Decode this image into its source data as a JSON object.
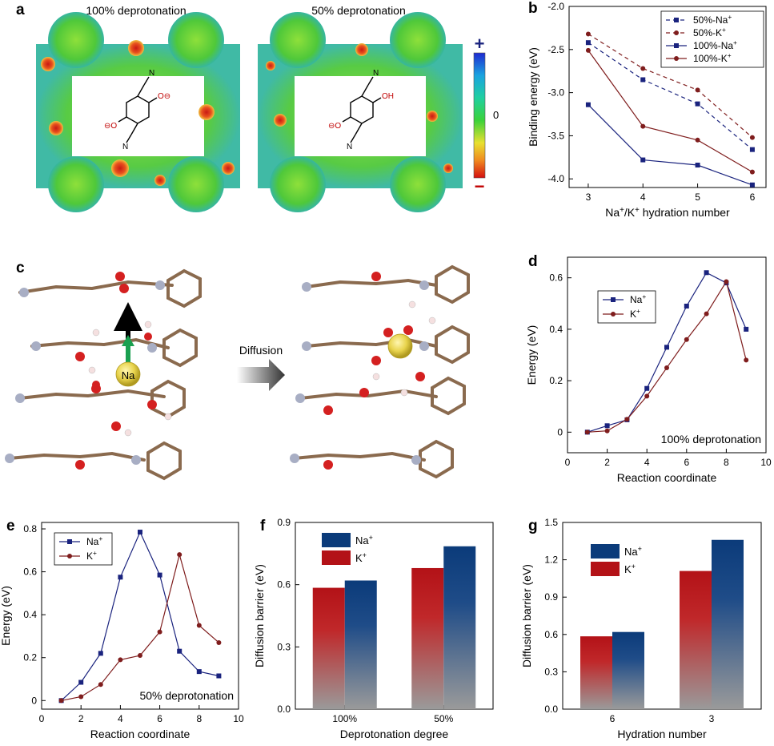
{
  "panels": {
    "a": {
      "letter": "a",
      "left_title": "100% deprotonation",
      "right_title": "50% deprotonation",
      "colorbar": {
        "plus": "+",
        "zero": "0",
        "minus": "−"
      },
      "molecule_oh": "OH"
    },
    "c": {
      "letter": "c",
      "ion_label": "Na",
      "arrow_label": "Diffusion"
    }
  },
  "colors": {
    "navy": "#1a237e",
    "maroon": "#7f1d1d",
    "bar_blue": "#0b3b7a",
    "bar_red": "#b31217",
    "bar_gray": "#9a9a9a",
    "esp_green": "#5ed33a",
    "esp_red": "#d82a1f",
    "esp_yellow": "#f3d34a",
    "atom_c": "#8a6a4e",
    "atom_o": "#d42020",
    "atom_n": "#a8aec4",
    "atom_na": "#e8d34c"
  },
  "chart_data": [
    {
      "id": "b",
      "letter": "b",
      "type": "line",
      "xlabel": "Na+/K+ hydration number",
      "ylabel": "Binding energy (eV)",
      "xlim": [
        3,
        6
      ],
      "ylim": [
        -4.1,
        -2.0
      ],
      "xticks": [
        "3",
        "4",
        "5",
        "6"
      ],
      "yticks": [
        "-2.0",
        "-2.5",
        "-3.0",
        "-3.5",
        "-4.0"
      ],
      "legend_position": "top-right",
      "x": [
        3,
        4,
        5,
        6
      ],
      "series": [
        {
          "name": "50%-Na+",
          "values": [
            -2.42,
            -2.85,
            -3.13,
            -3.66
          ],
          "style": "dashed",
          "marker": "square"
        },
        {
          "name": "50%-K+",
          "values": [
            -2.32,
            -2.72,
            -2.97,
            -3.52
          ],
          "style": "dashed",
          "marker": "circle"
        },
        {
          "name": "100%-Na+",
          "values": [
            -3.14,
            -3.78,
            -3.84,
            -4.07
          ],
          "style": "solid",
          "marker": "square"
        },
        {
          "name": "100%-K+",
          "values": [
            -2.51,
            -3.39,
            -3.55,
            -3.92
          ],
          "style": "solid",
          "marker": "circle"
        }
      ]
    },
    {
      "id": "d",
      "letter": "d",
      "type": "line",
      "xlabel": "Reaction coordinate",
      "ylabel": "Energy (eV)",
      "annotation": "100% deprotonation",
      "xlim": [
        0,
        10
      ],
      "ylim": [
        -0.08,
        0.68
      ],
      "xticks": [
        "0",
        "2",
        "4",
        "6",
        "8",
        "10"
      ],
      "yticks": [
        "0",
        "0.2",
        "0.4",
        "0.6"
      ],
      "legend_position": "top-left",
      "x": [
        1,
        2,
        3,
        4,
        5,
        6,
        7,
        8,
        9
      ],
      "series": [
        {
          "name": "Na+",
          "values": [
            0,
            0.025,
            0.048,
            0.17,
            0.33,
            0.49,
            0.62,
            0.58,
            0.4
          ],
          "marker": "square"
        },
        {
          "name": "K+",
          "values": [
            0,
            0.005,
            0.05,
            0.14,
            0.25,
            0.36,
            0.46,
            0.585,
            0.28
          ],
          "marker": "circle"
        }
      ]
    },
    {
      "id": "e",
      "letter": "e",
      "type": "line",
      "xlabel": "Reaction coordinate",
      "ylabel": "Energy (eV)",
      "annotation": "50% deprotonation",
      "xlim": [
        0,
        10
      ],
      "ylim": [
        -0.04,
        0.83
      ],
      "xticks": [
        "0",
        "2",
        "4",
        "6",
        "8",
        "10"
      ],
      "yticks": [
        "0",
        "0.2",
        "0.4",
        "0.6",
        "0.8"
      ],
      "legend_position": "top-left",
      "x": [
        1,
        2,
        3,
        4,
        5,
        6,
        7,
        8,
        9
      ],
      "series": [
        {
          "name": "Na+",
          "values": [
            0,
            0.085,
            0.22,
            0.575,
            0.785,
            0.585,
            0.23,
            0.135,
            0.115
          ],
          "marker": "square"
        },
        {
          "name": "K+",
          "values": [
            0,
            0.018,
            0.075,
            0.19,
            0.21,
            0.32,
            0.68,
            0.35,
            0.27
          ],
          "marker": "circle"
        }
      ]
    },
    {
      "id": "f",
      "letter": "f",
      "type": "bar",
      "xlabel": "Deprotonation degree",
      "ylabel": "Diffusion barrier (eV)",
      "categories": [
        "100%",
        "50%"
      ],
      "ylim": [
        0,
        0.9
      ],
      "yticks": [
        "0.0",
        "0.3",
        "0.6",
        "0.9"
      ],
      "legend_position": "top-left",
      "series": [
        {
          "name": "Na+",
          "values": [
            0.62,
            0.785
          ]
        },
        {
          "name": "K+",
          "values": [
            0.585,
            0.68
          ]
        }
      ]
    },
    {
      "id": "g",
      "letter": "g",
      "type": "bar",
      "xlabel": "Hydration number",
      "ylabel": "Diffusion barrier (eV)",
      "categories": [
        "6",
        "3"
      ],
      "ylim": [
        0,
        1.5
      ],
      "yticks": [
        "0.0",
        "0.3",
        "0.6",
        "0.9",
        "1.2",
        "1.5"
      ],
      "legend_position": "top-left",
      "series": [
        {
          "name": "Na+",
          "values": [
            0.62,
            1.36
          ]
        },
        {
          "name": "K+",
          "values": [
            0.585,
            1.11
          ]
        }
      ]
    }
  ]
}
